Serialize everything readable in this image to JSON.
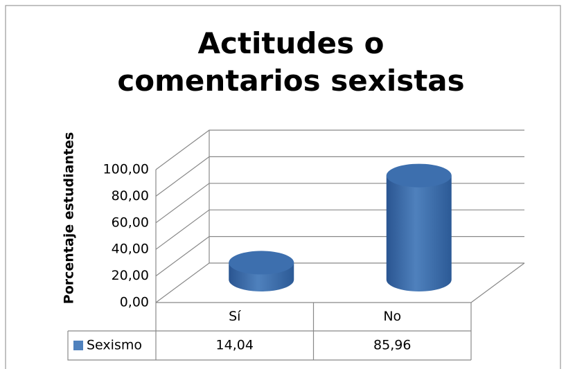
{
  "chart_data": {
    "type": "bar3d",
    "title": "Actitudes o comentarios sexistas",
    "y_label": "Porcentaje estudiantes",
    "categories": [
      "Sí",
      "No"
    ],
    "series": [
      {
        "name": "Sexismo",
        "color": "#4f81bd",
        "values": [
          14.04,
          85.96
        ],
        "value_labels": [
          "14,04",
          "85,96"
        ]
      }
    ],
    "ylim": [
      0,
      100
    ],
    "yticks": [
      {
        "value": 0,
        "label": "0,00"
      },
      {
        "value": 20,
        "label": "20,00"
      },
      {
        "value": 40,
        "label": "40,00"
      },
      {
        "value": 60,
        "label": "60,00"
      },
      {
        "value": 80,
        "label": "80,00"
      },
      {
        "value": 100,
        "label": "100,00"
      }
    ],
    "grid": true
  }
}
